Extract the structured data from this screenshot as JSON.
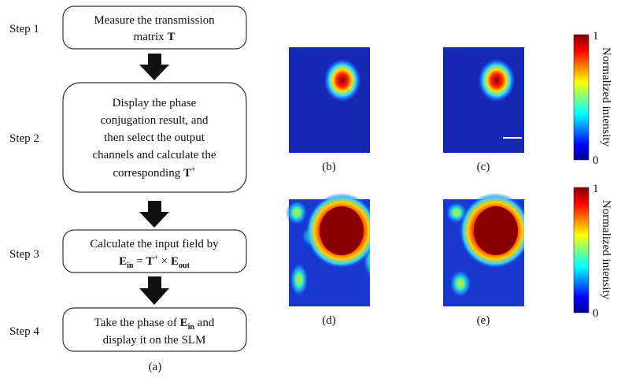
{
  "steps": [
    {
      "label": "Step 1",
      "lines": [
        [
          "Measure the transmission"
        ],
        [
          "matrix ",
          "T"
        ]
      ]
    },
    {
      "label": "Step 2",
      "lines": [
        [
          "Display the phase"
        ],
        [
          "conjugation result, and"
        ],
        [
          "then select the output"
        ],
        [
          "channels and calculate the"
        ],
        [
          "corresponding ",
          "T",
          "+"
        ]
      ]
    },
    {
      "label": "Step 3",
      "lines": [
        [
          "Calculate the input field by"
        ],
        [
          "E",
          "in",
          " = ",
          "T",
          "+",
          " × ",
          "E",
          "out"
        ]
      ]
    },
    {
      "label": "Step 4",
      "lines": [
        [
          "Take the phase of ",
          "E",
          "in",
          " and"
        ],
        [
          "display it on the SLM"
        ]
      ]
    }
  ],
  "figure_label": "(a)",
  "panels": [
    "(b)",
    "(c)",
    "(d)",
    "(e)"
  ],
  "colorbars": [
    {
      "max": "1",
      "min": "0",
      "label": "Normalized intensity"
    },
    {
      "max": "1",
      "min": "0",
      "label": "Normalized intensity"
    }
  ]
}
